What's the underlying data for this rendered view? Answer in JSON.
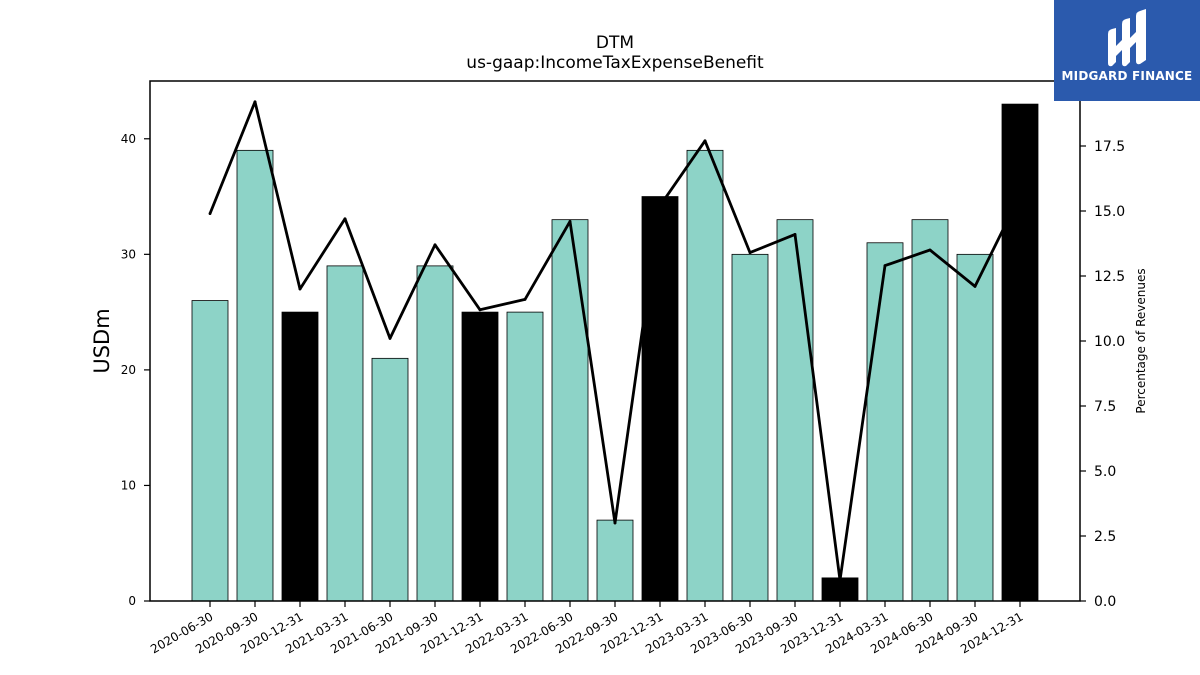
{
  "chart_data": {
    "type": "bar",
    "title": "DTM",
    "subtitle": "us-gaap:IncomeTaxExpenseBenefit",
    "ylabel": "USDm",
    "y2label": "Percentage of Revenues",
    "ylim": [
      0,
      45
    ],
    "y2lim": [
      0,
      20
    ],
    "yticks": [
      0,
      10,
      20,
      30,
      40
    ],
    "y2ticks": [
      "0.0",
      "2.5",
      "5.0",
      "7.5",
      "10.0",
      "12.5",
      "15.0",
      "17.5"
    ],
    "categories": [
      "2020-06-30",
      "2020-09-30",
      "2020-12-31",
      "2021-03-31",
      "2021-06-30",
      "2021-09-30",
      "2021-12-31",
      "2022-03-31",
      "2022-06-30",
      "2022-09-30",
      "2022-12-31",
      "2023-03-31",
      "2023-06-30",
      "2023-09-30",
      "2023-12-31",
      "2024-03-31",
      "2024-06-30",
      "2024-09-30",
      "2024-12-31"
    ],
    "series": [
      {
        "type": "bar",
        "axis": "left",
        "values": [
          26,
          39,
          25,
          29,
          21,
          29,
          25,
          25,
          33,
          7,
          35,
          39,
          30,
          33,
          2,
          31,
          33,
          30,
          43
        ],
        "highlight": [
          false,
          false,
          true,
          false,
          false,
          false,
          true,
          false,
          false,
          false,
          true,
          false,
          false,
          false,
          true,
          false,
          false,
          false,
          true
        ]
      },
      {
        "type": "line",
        "axis": "right",
        "values": [
          14.9,
          19.2,
          12.0,
          14.7,
          10.1,
          13.7,
          11.2,
          11.6,
          14.6,
          3.0,
          15.2,
          17.7,
          13.4,
          14.1,
          0.8,
          12.9,
          13.5,
          12.1,
          15.6
        ]
      }
    ],
    "colors": {
      "bar": "#8dd3c7",
      "bar_highlight": "#000000",
      "line": "#000000"
    },
    "grid": false,
    "legend": "none"
  },
  "logo": {
    "text": "MIDGARD FINANCE",
    "icon": "midgard-logo-icon"
  }
}
